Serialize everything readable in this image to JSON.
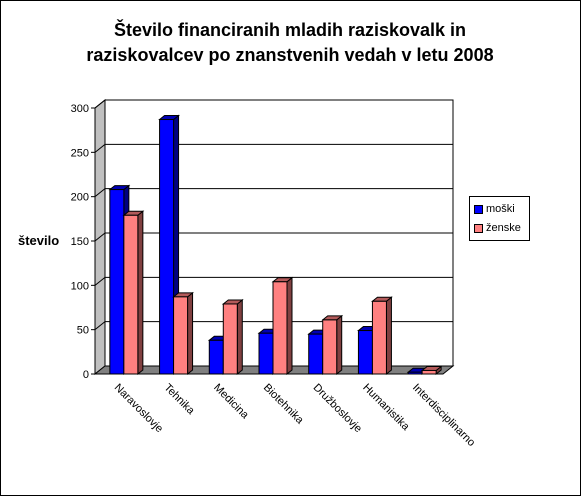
{
  "chart_data": {
    "type": "bar",
    "title_lines": [
      "Število financiranih mladih raziskovalk in",
      "raziskovalcev po znanstvenih vedah v letu 2008"
    ],
    "ylabel": "število",
    "xlabel": "",
    "ylim": [
      0,
      300
    ],
    "yticks": [
      0,
      50,
      100,
      150,
      200,
      250,
      300
    ],
    "grid": true,
    "legend_position": "right",
    "categories": [
      "Naravoslovje",
      "Tehnika",
      "Medicina",
      "Biotehnika",
      "Družboslovje",
      "Humanistika",
      "Interdisciplinarno"
    ],
    "series": [
      {
        "name": "moški",
        "color": "#0000ff",
        "values": [
          208,
          287,
          38,
          46,
          45,
          49,
          2
        ]
      },
      {
        "name": "ženske",
        "color": "#ff8080",
        "values": [
          179,
          87,
          79,
          104,
          61,
          82,
          4
        ]
      }
    ]
  }
}
